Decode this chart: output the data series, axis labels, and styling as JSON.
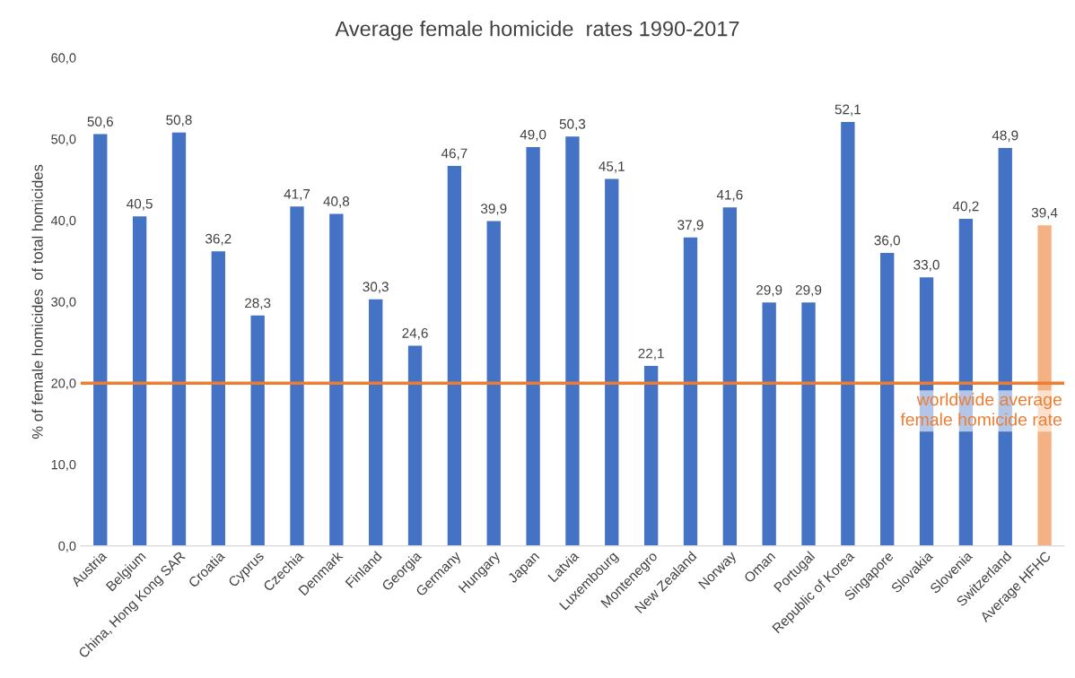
{
  "chart_data": {
    "type": "bar",
    "title": "Average female homicide  rates 1990-2017",
    "ylabel": "% of female homicides  of total homicides",
    "categories": [
      "Austria",
      "Belgium",
      "China, Hong Kong SAR",
      "Croatia",
      "Cyprus",
      "Czechia",
      "Denmark",
      "Finland",
      "Georgia",
      "Germany",
      "Hungary",
      "Japan",
      "Latvia",
      "Luxembourg",
      "Montenegro",
      "New Zealand",
      "Norway",
      "Oman",
      "Portugal",
      "Republic of Korea",
      "Singapore",
      "Slovakia",
      "Slovenia",
      "Switzerland",
      "Average HFHC"
    ],
    "values": [
      50.6,
      40.5,
      50.8,
      36.2,
      28.3,
      41.7,
      40.8,
      30.3,
      24.6,
      46.7,
      39.9,
      49.0,
      50.3,
      45.1,
      22.1,
      37.9,
      41.6,
      29.9,
      29.9,
      52.1,
      36.0,
      33.0,
      40.2,
      48.9,
      39.4
    ],
    "value_labels": [
      "50,6",
      "40,5",
      "50,8",
      "36,2",
      "28,3",
      "41,7",
      "40,8",
      "30,3",
      "24,6",
      "46,7",
      "39,9",
      "49,0",
      "50,3",
      "45,1",
      "22,1",
      "37,9",
      "41,6",
      "29,9",
      "29,9",
      "52,1",
      "36,0",
      "33,0",
      "40,2",
      "48,9",
      "39,4"
    ],
    "colors": [
      "#4472c4",
      "#4472c4",
      "#4472c4",
      "#4472c4",
      "#4472c4",
      "#4472c4",
      "#4472c4",
      "#4472c4",
      "#4472c4",
      "#4472c4",
      "#4472c4",
      "#4472c4",
      "#4472c4",
      "#4472c4",
      "#4472c4",
      "#4472c4",
      "#4472c4",
      "#4472c4",
      "#4472c4",
      "#4472c4",
      "#4472c4",
      "#4472c4",
      "#4472c4",
      "#4472c4",
      "#f4b183"
    ],
    "ylim": [
      0,
      60
    ],
    "yticks": [
      {
        "value": 0,
        "label": "0,0"
      },
      {
        "value": 10,
        "label": "10,0"
      },
      {
        "value": 20,
        "label": "20,0"
      },
      {
        "value": 30,
        "label": "30,0"
      },
      {
        "value": 40,
        "label": "40,0"
      },
      {
        "value": 50,
        "label": "50,0"
      },
      {
        "value": 60,
        "label": "60,0"
      }
    ],
    "ref_lines": [
      {
        "axis": "y",
        "value": 20,
        "label": "worldwide average\nfemale homicide rate",
        "color": "#ed7d31"
      }
    ],
    "grid": false
  }
}
